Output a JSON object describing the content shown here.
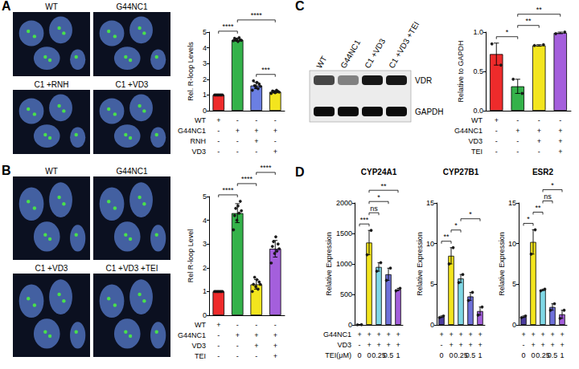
{
  "chart_data": [
    {
      "panel": "A",
      "type": "bar",
      "y_label": "Rel. R-loop Levels",
      "values": [
        1.0,
        4.5,
        1.6,
        1.2
      ],
      "errors": [
        0,
        0.08,
        0.2,
        0.07
      ],
      "points": [
        [
          1,
          1,
          1,
          1,
          1,
          1,
          1,
          1
        ],
        [
          4.45,
          4.6,
          4.5,
          4.55,
          4.4,
          4.65,
          4.5,
          4.48
        ],
        [
          1.3,
          1.9,
          1.6,
          1.5,
          1.8,
          1.4,
          1.7,
          1.55
        ],
        [
          1.1,
          1.25,
          1.2,
          1.15,
          1.3,
          1.22,
          1.18
        ]
      ],
      "colors": [
        "#ee2b2b",
        "#34b24a",
        "#6b7fe3",
        "#f3e51e"
      ],
      "ylim": [
        0,
        5
      ],
      "yticks": [
        0,
        1,
        2,
        3,
        4,
        5
      ],
      "significance": [
        {
          "from": 0,
          "to": 1,
          "label": "****"
        },
        {
          "from": 2,
          "to": 3,
          "label": "***"
        },
        {
          "from": 1,
          "to": 3,
          "label": "****"
        }
      ],
      "table": [
        {
          "label": "WT",
          "cells": [
            "+",
            "-",
            "-",
            "-"
          ]
        },
        {
          "label": "G44NC1",
          "cells": [
            "-",
            "+",
            "+",
            "+"
          ]
        },
        {
          "label": "RNH",
          "cells": [
            "-",
            "-",
            "+",
            "-"
          ]
        },
        {
          "label": "VD3",
          "cells": [
            "-",
            "-",
            "-",
            "+"
          ]
        }
      ]
    },
    {
      "panel": "B",
      "type": "bar",
      "y_label": "Rel R-loop Level",
      "values": [
        1.0,
        4.3,
        1.3,
        2.8
      ],
      "errors": [
        0,
        0.4,
        0.2,
        0.35
      ],
      "points": [
        [
          1,
          1,
          1,
          1,
          1,
          1,
          1,
          1
        ],
        [
          3.6,
          4.2,
          4.5,
          4.0,
          4.6,
          4.3,
          4.8,
          4.4
        ],
        [
          1.0,
          1.3,
          1.6,
          1.2,
          1.5,
          1.1,
          1.4,
          1.3
        ],
        [
          2.2,
          2.9,
          3.1,
          2.6,
          3.3,
          2.7,
          3.0,
          2.8
        ]
      ],
      "colors": [
        "#ee2b2b",
        "#34b24a",
        "#f3e51e",
        "#a45fdc"
      ],
      "ylim": [
        0,
        5
      ],
      "yticks": [
        0,
        1,
        2,
        3,
        4,
        5
      ],
      "significance": [
        {
          "from": 0,
          "to": 1,
          "label": "****"
        },
        {
          "from": 1,
          "to": 2,
          "label": "****"
        },
        {
          "from": 2,
          "to": 3,
          "label": "****"
        }
      ],
      "table": [
        {
          "label": "WT",
          "cells": [
            "+",
            "-",
            "-",
            "-"
          ]
        },
        {
          "label": "G44NC1",
          "cells": [
            "-",
            "+",
            "+",
            "+"
          ]
        },
        {
          "label": "VD3",
          "cells": [
            "-",
            "-",
            "+",
            "+"
          ]
        },
        {
          "label": "TEI",
          "cells": [
            "-",
            "-",
            "-",
            "+"
          ]
        }
      ]
    },
    {
      "panel": "C",
      "type": "bar",
      "y_label": "Relative to GAPDH",
      "values": [
        0.72,
        0.31,
        0.83,
        0.99
      ],
      "errors": [
        0.14,
        0.09,
        0.01,
        0.01
      ],
      "points": [
        [
          0.85,
          0.58
        ],
        [
          0.4,
          0.22
        ],
        [
          0.83,
          0.84
        ],
        [
          0.98,
          1.0
        ]
      ],
      "colors": [
        "#ee2b2b",
        "#34b24a",
        "#f3e51e",
        "#a45fdc"
      ],
      "ylim": [
        0,
        1.0
      ],
      "yticks": [
        {
          "value": 0,
          "label": "0.0"
        },
        {
          "value": 0.5,
          "label": "0.5"
        },
        {
          "value": 1.0,
          "label": "1.0"
        }
      ],
      "significance": [
        {
          "from": 0,
          "to": 1,
          "label": "*"
        },
        {
          "from": 1,
          "to": 2,
          "label": "**"
        },
        {
          "from": 1,
          "to": 3,
          "label": "**"
        }
      ],
      "table": [
        {
          "label": "WT",
          "cells": [
            "+",
            "-",
            "-",
            "-"
          ]
        },
        {
          "label": "G44NC1",
          "cells": [
            "-",
            "+",
            "+",
            "+"
          ]
        },
        {
          "label": "VD3",
          "cells": [
            "-",
            "-",
            "+",
            "+"
          ]
        },
        {
          "label": "TEI",
          "cells": [
            "-",
            "-",
            "-",
            "+"
          ]
        }
      ]
    },
    {
      "panel": "D",
      "type": "bar",
      "y_label": "Relative Expression",
      "colors": [
        "#4b3c9e",
        "#f3e51e",
        "#7fd8e6",
        "#6e70d9",
        "#a35edb"
      ],
      "table": [
        {
          "label": "G44NC1",
          "cells": [
            "+",
            "+",
            "+",
            "+",
            "+"
          ]
        },
        {
          "label": "VD3",
          "cells": [
            "-",
            "+",
            "+",
            "+",
            "+"
          ]
        },
        {
          "label": "TEI(μM)",
          "cells": [
            "0",
            "0",
            "0.25",
            "0.5",
            "1"
          ]
        }
      ],
      "subplots": [
        {
          "title": "CYP24A1",
          "values": [
            3,
            1350,
            950,
            830,
            580
          ],
          "errors": [
            1,
            200,
            70,
            100,
            20
          ],
          "points": [
            [
              2,
              4
            ],
            [
              1150,
              1550
            ],
            [
              880,
              1020
            ],
            [
              730,
              930
            ],
            [
              560,
              600
            ]
          ],
          "ylim": [
            0,
            2000
          ],
          "yticks": [
            0,
            500,
            1000,
            1500,
            2000
          ],
          "significance": [
            {
              "from": 0,
              "to": 1,
              "label": "***"
            },
            {
              "from": 1,
              "to": 2,
              "label": "ns"
            },
            {
              "from": 1,
              "to": 3,
              "label": "*"
            },
            {
              "from": 1,
              "to": 4,
              "label": "**"
            }
          ]
        },
        {
          "title": "CYP27B1",
          "values": [
            1.0,
            8.5,
            5.7,
            3.5,
            1.7
          ],
          "errors": [
            0.1,
            1.0,
            0.5,
            0.5,
            0.5
          ],
          "points": [
            [
              0.9,
              1.1
            ],
            [
              7.5,
              9.5
            ],
            [
              5.2,
              6.2
            ],
            [
              3.0,
              4.0
            ],
            [
              1.2,
              2.2
            ]
          ],
          "ylim": [
            0,
            15
          ],
          "yticks": [
            0,
            5,
            10,
            15
          ],
          "significance": [
            {
              "from": 0,
              "to": 1,
              "label": "**"
            },
            {
              "from": 1,
              "to": 2,
              "label": "*"
            },
            {
              "from": 2,
              "to": 4,
              "label": "*"
            }
          ]
        },
        {
          "title": "ESR2",
          "values": [
            1.0,
            10.2,
            4.3,
            2.2,
            1.3
          ],
          "errors": [
            0.1,
            1.5,
            0.1,
            0.4,
            0.5
          ],
          "points": [
            [
              0.9,
              1.1
            ],
            [
              8.7,
              11.7
            ],
            [
              4.2,
              4.4
            ],
            [
              1.8,
              2.6
            ],
            [
              0.8,
              1.8
            ]
          ],
          "ylim": [
            0,
            15
          ],
          "yticks": [
            0,
            5,
            10,
            15
          ],
          "significance": [
            {
              "from": 0,
              "to": 1,
              "label": "*"
            },
            {
              "from": 1,
              "to": 2,
              "label": "**"
            },
            {
              "from": 2,
              "to": 3,
              "label": "ns"
            },
            {
              "from": 2,
              "to": 4,
              "label": "*"
            }
          ]
        }
      ]
    }
  ],
  "images": [
    {
      "labels": [
        "WT",
        "G44NC1",
        "C1 +RNH",
        "C1 +VD3"
      ]
    },
    {
      "labels": [
        "WT",
        "G44NC1",
        "C1 +VD3",
        "C1 +VD3 +TEI"
      ]
    }
  ],
  "blot": {
    "lanes": [
      "WT",
      "G44NC1",
      "C1 +VD3",
      "C1 +VD3 +TEI"
    ],
    "bands": [
      {
        "name": "VDR",
        "intensity": [
          0.7,
          0.45,
          0.9,
          0.9
        ]
      },
      {
        "name": "GAPDH",
        "intensity": [
          0.95,
          0.95,
          0.95,
          0.95
        ]
      }
    ]
  }
}
